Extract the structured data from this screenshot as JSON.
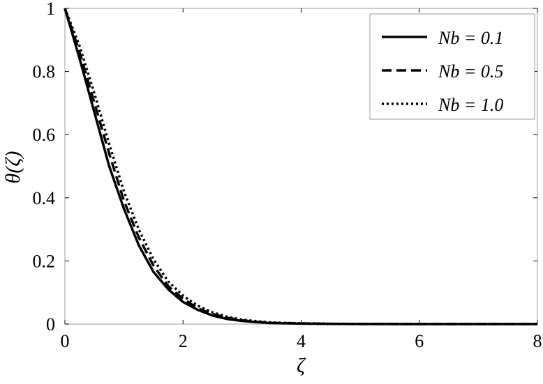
{
  "chart_data": {
    "type": "line",
    "title": "",
    "xlabel": "ζ",
    "ylabel": "θ(ζ)",
    "xlim": [
      0,
      8
    ],
    "ylim": [
      0,
      1
    ],
    "xticks": [
      0,
      2,
      4,
      6,
      8
    ],
    "yticks": [
      0,
      0.2,
      0.4,
      0.6,
      0.8,
      1
    ],
    "xtick_labels": [
      "0",
      "2",
      "4",
      "6",
      "8"
    ],
    "ytick_labels": [
      "0",
      "0.2",
      "0.4",
      "0.6",
      "0.8",
      "1"
    ],
    "grid": false,
    "legend_position": "top-right",
    "x": [
      0,
      0.25,
      0.5,
      0.75,
      1.0,
      1.25,
      1.5,
      1.75,
      2.0,
      2.25,
      2.5,
      2.75,
      3.0,
      3.25,
      3.5,
      4.0,
      4.5,
      5.0,
      6.0,
      7.0,
      8.0
    ],
    "series": [
      {
        "name": "Nb = 0.1",
        "style": "solid",
        "values": [
          1.0,
          0.84,
          0.67,
          0.5,
          0.365,
          0.25,
          0.165,
          0.11,
          0.07,
          0.045,
          0.027,
          0.016,
          0.01,
          0.006,
          0.003,
          0.0015,
          0.0005,
          0.0002,
          0.0,
          0.0,
          0.0
        ]
      },
      {
        "name": "Nb = 0.5",
        "style": "dashed",
        "values": [
          1.0,
          0.86,
          0.7,
          0.54,
          0.39,
          0.275,
          0.185,
          0.12,
          0.08,
          0.05,
          0.032,
          0.02,
          0.012,
          0.007,
          0.004,
          0.002,
          0.0007,
          0.0003,
          0.0,
          0.0,
          0.0
        ]
      },
      {
        "name": "Nb = 1.0",
        "style": "dotted",
        "values": [
          1.0,
          0.88,
          0.73,
          0.57,
          0.42,
          0.3,
          0.205,
          0.135,
          0.09,
          0.058,
          0.037,
          0.023,
          0.014,
          0.009,
          0.005,
          0.0025,
          0.001,
          0.0004,
          0.0,
          0.0,
          0.0
        ]
      }
    ]
  },
  "colors": {
    "line": "#000000",
    "background": "#ffffff"
  }
}
